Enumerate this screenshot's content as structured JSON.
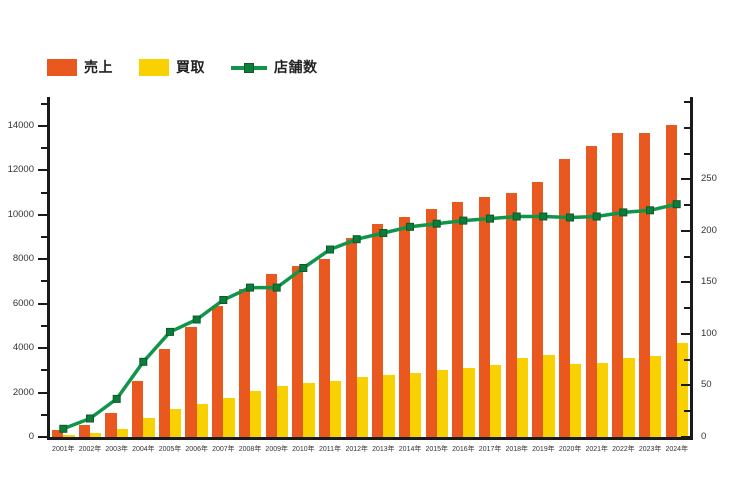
{
  "legend": {
    "sales_label": "売上",
    "purchase_label": "買取",
    "stores_label": "店舗数"
  },
  "colors": {
    "sales_bar": "#e8581f",
    "purchase_bar": "#f9d000",
    "stores_line": "#10954a",
    "stores_marker_fill": "#0b7c39",
    "stores_marker_stroke": "#085c2b",
    "axis": "#1a1a1a",
    "axis_text": "#333333",
    "background": "#ffffff"
  },
  "chart_data": {
    "type": "bar",
    "subtype": "combo-bar-line-dual-axis",
    "title": "",
    "xlabel": "",
    "ylabel_left": "",
    "ylabel_right": "",
    "grid": false,
    "legend_position": "top-left",
    "categories": [
      "2001年",
      "2002年",
      "2003年",
      "2004年",
      "2005年",
      "2006年",
      "2007年",
      "2008年",
      "2009年",
      "2010年",
      "2011年",
      "2012年",
      "2013年",
      "2014年",
      "2015年",
      "2016年",
      "2017年",
      "2018年",
      "2019年",
      "2020年",
      "2021年",
      "2022年",
      "2023年",
      "2024年"
    ],
    "series": [
      {
        "name": "売上",
        "type": "bar",
        "axis": "left",
        "color": "#e8581f",
        "values": [
          330,
          550,
          1100,
          2500,
          3950,
          4950,
          5900,
          6650,
          7350,
          7700,
          8000,
          8950,
          9600,
          9900,
          10250,
          10600,
          10800,
          11000,
          11500,
          12500,
          13100,
          13700,
          13700,
          14050
        ]
      },
      {
        "name": "買取",
        "type": "bar",
        "axis": "left",
        "color": "#f9d000",
        "values": [
          100,
          200,
          360,
          850,
          1250,
          1500,
          1750,
          2050,
          2300,
          2450,
          2500,
          2700,
          2800,
          2900,
          3000,
          3100,
          3250,
          3550,
          3700,
          3300,
          3350,
          3550,
          3650,
          4250
        ]
      },
      {
        "name": "店舗数",
        "type": "line",
        "axis": "right",
        "color": "#10954a",
        "values": [
          8,
          18,
          37,
          73,
          102,
          114,
          133,
          145,
          145,
          164,
          182,
          192,
          198,
          204,
          207,
          210,
          212,
          214,
          214,
          213,
          214,
          218,
          220,
          226
        ]
      }
    ],
    "left_axis": {
      "tick_labels": [
        0,
        2000,
        4000,
        6000,
        8000,
        10000,
        12000,
        14000
      ],
      "minor_step": 1000,
      "minor_max": 15000,
      "scale_max": 15305
    },
    "right_axis": {
      "tick_labels": [
        0,
        50,
        100,
        150,
        200,
        250
      ],
      "minor_step": 25,
      "minor_max": 325,
      "scale_max": 330
    }
  }
}
